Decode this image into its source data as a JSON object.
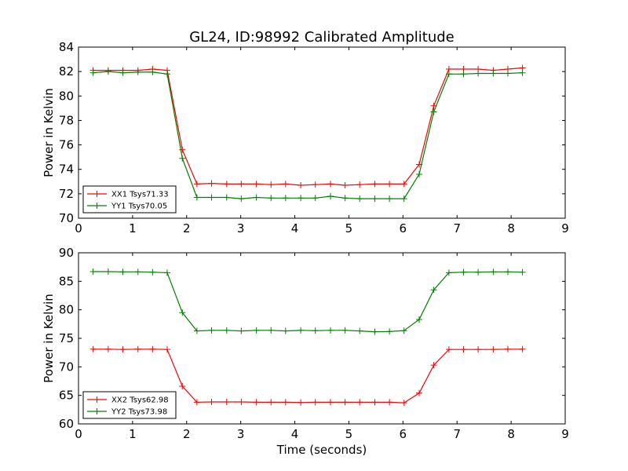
{
  "title": "GL24, ID:98992 Calibrated Amplitude",
  "chart_data": [
    {
      "type": "line",
      "title": "GL24, ID:98992 Calibrated Amplitude",
      "xlabel": "",
      "ylabel": "Power in Kelvin",
      "xlim": [
        0,
        9
      ],
      "ylim": [
        70,
        84
      ],
      "xticks": [
        0,
        1,
        2,
        3,
        4,
        5,
        6,
        7,
        8,
        9
      ],
      "yticks": [
        70,
        72,
        74,
        76,
        78,
        80,
        82,
        84
      ],
      "grid": false,
      "legend": "lower-left",
      "x": [
        0.27,
        0.55,
        0.82,
        1.1,
        1.37,
        1.64,
        1.92,
        2.19,
        2.46,
        2.74,
        3.01,
        3.29,
        3.56,
        3.83,
        4.11,
        4.38,
        4.66,
        4.93,
        5.2,
        5.48,
        5.75,
        6.02,
        6.3,
        6.57,
        6.85,
        7.12,
        7.39,
        7.67,
        7.94,
        8.21
      ],
      "series": [
        {
          "name": "XX1 Tsys71.33",
          "color": "#ff0000",
          "values": [
            82.1,
            82.1,
            82.1,
            82.1,
            82.2,
            82.1,
            75.6,
            72.8,
            72.85,
            72.8,
            72.8,
            72.8,
            72.75,
            72.8,
            72.7,
            72.75,
            72.8,
            72.7,
            72.75,
            72.8,
            72.8,
            72.8,
            74.4,
            79.2,
            82.2,
            82.2,
            82.2,
            82.1,
            82.2,
            82.3
          ]
        },
        {
          "name": "YY1 Tsys70.05",
          "color": "#008000",
          "values": [
            81.9,
            82.0,
            81.9,
            81.95,
            81.95,
            81.8,
            74.9,
            71.7,
            71.7,
            71.7,
            71.6,
            71.7,
            71.65,
            71.65,
            71.65,
            71.65,
            71.8,
            71.65,
            71.6,
            71.6,
            71.6,
            71.6,
            73.6,
            78.7,
            81.8,
            81.8,
            81.85,
            81.85,
            81.85,
            81.9
          ]
        }
      ]
    },
    {
      "type": "line",
      "title": "",
      "xlabel": "Time (seconds)",
      "ylabel": "Power in Kelvin",
      "xlim": [
        0,
        9
      ],
      "ylim": [
        60,
        90
      ],
      "xticks": [
        0,
        1,
        2,
        3,
        4,
        5,
        6,
        7,
        8,
        9
      ],
      "yticks": [
        60,
        65,
        70,
        75,
        80,
        85,
        90
      ],
      "grid": false,
      "legend": "lower-left",
      "x": [
        0.27,
        0.55,
        0.82,
        1.1,
        1.37,
        1.64,
        1.92,
        2.19,
        2.46,
        2.74,
        3.01,
        3.29,
        3.56,
        3.83,
        4.11,
        4.38,
        4.66,
        4.93,
        5.2,
        5.48,
        5.75,
        6.02,
        6.3,
        6.57,
        6.85,
        7.12,
        7.39,
        7.67,
        7.94,
        8.21
      ],
      "series": [
        {
          "name": "XX2 Tsys62.98",
          "color": "#ff0000",
          "values": [
            73.1,
            73.1,
            73.05,
            73.1,
            73.1,
            73.05,
            66.6,
            63.8,
            63.85,
            63.85,
            63.85,
            63.8,
            63.8,
            63.8,
            63.75,
            63.8,
            63.8,
            63.8,
            63.8,
            63.8,
            63.8,
            63.7,
            65.4,
            70.3,
            73.05,
            73.05,
            73.05,
            73.05,
            73.1,
            73.1
          ]
        },
        {
          "name": "YY2 Tsys73.98",
          "color": "#008000",
          "values": [
            86.7,
            86.7,
            86.65,
            86.65,
            86.6,
            86.5,
            79.5,
            76.3,
            76.4,
            76.4,
            76.3,
            76.4,
            76.4,
            76.3,
            76.4,
            76.35,
            76.4,
            76.4,
            76.3,
            76.15,
            76.2,
            76.35,
            78.3,
            83.5,
            86.5,
            86.6,
            86.6,
            86.65,
            86.65,
            86.6
          ]
        }
      ]
    }
  ]
}
